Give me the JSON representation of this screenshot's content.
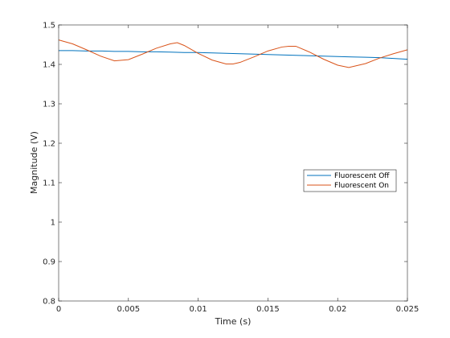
{
  "chart_data": {
    "type": "line",
    "title": "",
    "xlabel": "Time (s)",
    "ylabel": "Magnitude (V)",
    "xlim": [
      0,
      0.025
    ],
    "ylim": [
      0.8,
      1.5
    ],
    "xticks": [
      "0",
      "0.005",
      "0.01",
      "0.015",
      "0.02",
      "0.025"
    ],
    "xtick_values": [
      0,
      0.005,
      0.01,
      0.015,
      0.02,
      0.025
    ],
    "yticks": [
      "0.8",
      "0.9",
      "1",
      "1.1",
      "1.2",
      "1.3",
      "1.4",
      "1.5"
    ],
    "ytick_values": [
      0.8,
      0.9,
      1.0,
      1.1,
      1.2,
      1.3,
      1.4,
      1.5
    ],
    "grid": false,
    "legend_position": "east",
    "series": [
      {
        "name": "Fluorescent Off",
        "color": "#0072bd",
        "x": [
          0,
          0.001,
          0.002,
          0.003,
          0.004,
          0.005,
          0.006,
          0.007,
          0.008,
          0.009,
          0.01,
          0.011,
          0.012,
          0.013,
          0.014,
          0.015,
          0.016,
          0.017,
          0.018,
          0.019,
          0.02,
          0.021,
          0.022,
          0.023,
          0.024,
          0.025
        ],
        "y": [
          1.435,
          1.435,
          1.434,
          1.434,
          1.433,
          1.433,
          1.432,
          1.432,
          1.431,
          1.43,
          1.43,
          1.429,
          1.428,
          1.427,
          1.426,
          1.425,
          1.424,
          1.423,
          1.422,
          1.421,
          1.42,
          1.419,
          1.418,
          1.417,
          1.415,
          1.413
        ]
      },
      {
        "name": "Fluorescent On",
        "color": "#d95319",
        "x": [
          0,
          0.001,
          0.002,
          0.003,
          0.004,
          0.005,
          0.006,
          0.007,
          0.008,
          0.0085,
          0.009,
          0.01,
          0.011,
          0.012,
          0.0125,
          0.013,
          0.014,
          0.015,
          0.016,
          0.0165,
          0.017,
          0.018,
          0.019,
          0.02,
          0.0208,
          0.022,
          0.023,
          0.024,
          0.025
        ],
        "y": [
          1.462,
          1.452,
          1.437,
          1.421,
          1.409,
          1.412,
          1.426,
          1.441,
          1.452,
          1.455,
          1.448,
          1.428,
          1.411,
          1.401,
          1.401,
          1.405,
          1.419,
          1.434,
          1.444,
          1.446,
          1.446,
          1.431,
          1.413,
          1.398,
          1.392,
          1.402,
          1.416,
          1.427,
          1.437
        ]
      }
    ]
  }
}
